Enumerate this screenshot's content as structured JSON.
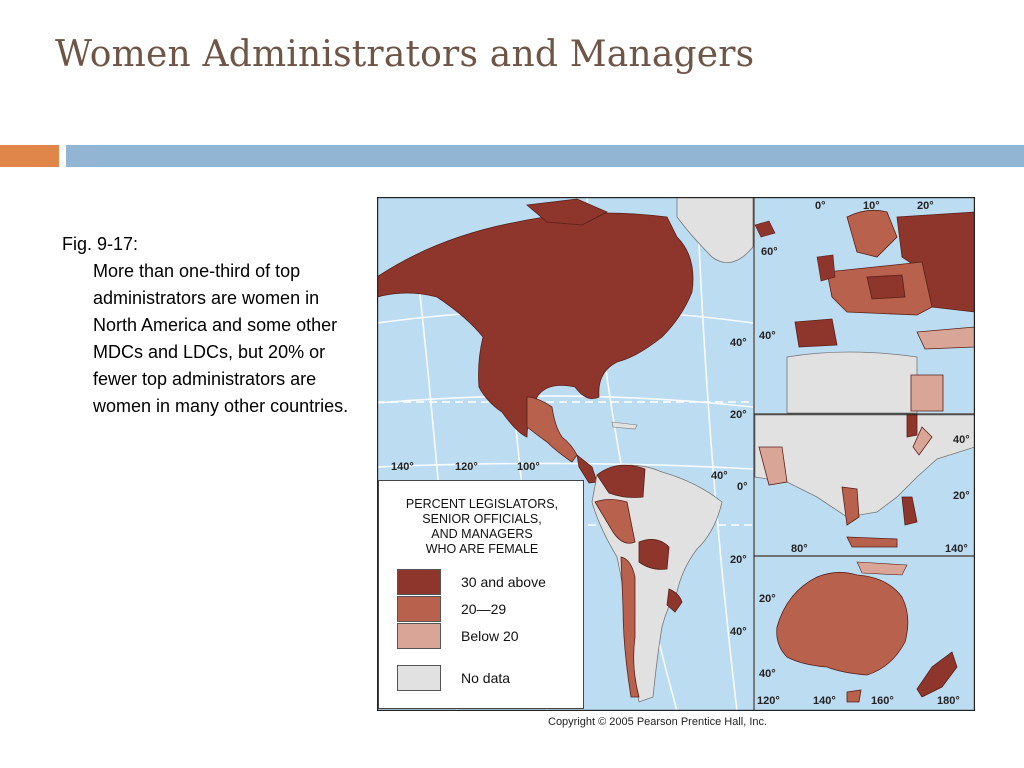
{
  "slide": {
    "title": "Women Administrators and Managers"
  },
  "caption": {
    "fig_label": "Fig. 9-17:",
    "body": "More than one-third of top administrators are women in North America and some other MDCs and LDCs, but 20% or fewer top administrators are women in many other countries."
  },
  "map": {
    "credit": "Copyright © 2005 Pearson Prentice Hall, Inc.",
    "legend": {
      "title_lines": [
        "PERCENT LEGISLATORS,",
        "SENIOR OFFICIALS,",
        "AND MANAGERS",
        "WHO ARE FEMALE"
      ],
      "items": [
        {
          "label": "30 and above",
          "color": "#8e352c"
        },
        {
          "label": "20—29",
          "color": "#b8614d"
        },
        {
          "label": "Below 20",
          "color": "#d9a597"
        },
        {
          "label": "No data",
          "color": "#e1e1e1"
        }
      ]
    },
    "labels": {
      "lon_140_w": "140°",
      "lon_120_w": "120°",
      "lon_100_w": "100°",
      "lat_40_am": "40°",
      "lat_20_am": "20°",
      "lat_0_am": "0°",
      "lat_40_am2": "40°",
      "lat_20_sa": "20°",
      "lat_40_sa": "40°",
      "eu_lon_0": "0°",
      "eu_lon_10": "10°",
      "eu_lon_20": "20°",
      "eu_lat_60": "60°",
      "eu_lat_40": "40°",
      "as_lat_40": "40°",
      "as_lat_20": "20°",
      "as_lon_80": "80°",
      "as_lon_140": "140°",
      "au_lat_20": "20°",
      "au_lat_40": "40°",
      "au_lon_120": "120°",
      "au_lon_140": "140°",
      "au_lon_160": "160°",
      "au_lon_180": "180°"
    },
    "colors": {
      "ocean": "#bcdcf2",
      "high": "#8e352c",
      "mid": "#b8614d",
      "low": "#d9a597",
      "nodata": "#e1e1e1"
    }
  }
}
